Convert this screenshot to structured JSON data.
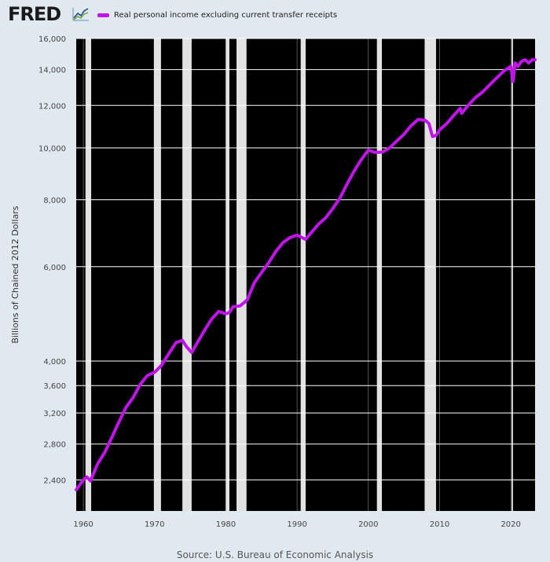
{
  "header": {
    "logo_text": "FRED",
    "logo_icon": "line-chart-icon"
  },
  "footer": {
    "source": "Source: U.S. Bureau of Economic Analysis"
  },
  "colors": {
    "background": "#e1e9f0",
    "plot_background": "#000000",
    "recession_band": "#e1e1e1",
    "series": "#c015e8",
    "grid": "#ffffff"
  },
  "chart_data": {
    "type": "line",
    "title": "",
    "xlabel": "",
    "ylabel": "Billions of Chained 2012 Dollars",
    "y_scale": "log",
    "ylim": [
      2100,
      16000
    ],
    "xlim": [
      1959.0,
      2023.4
    ],
    "grid": true,
    "legend_position": "top-left",
    "y_ticks": [
      2400,
      2800,
      3200,
      3600,
      4000,
      6000,
      8000,
      10000,
      12000,
      14000,
      16000
    ],
    "y_tick_labels": [
      "2,400",
      "2,800",
      "3,200",
      "3,600",
      "4,000",
      "6,000",
      "8,000",
      "10,000",
      "12,000",
      "14,000",
      "16,000"
    ],
    "x_ticks": [
      1960,
      1970,
      1980,
      1990,
      2000,
      2010,
      2020
    ],
    "x_tick_labels": [
      "1960",
      "1970",
      "1980",
      "1990",
      "2000",
      "2010",
      "2020"
    ],
    "recessions": [
      [
        1960.3,
        1961.1
      ],
      [
        1969.9,
        1970.9
      ],
      [
        1973.9,
        1975.2
      ],
      [
        1980.0,
        1980.5
      ],
      [
        1981.5,
        1982.9
      ],
      [
        1990.5,
        1991.2
      ],
      [
        2001.2,
        2001.9
      ],
      [
        2007.9,
        2009.5
      ],
      [
        2020.1,
        2020.3
      ]
    ],
    "series": [
      {
        "name": "Real personal income excluding current transfer receipts",
        "x": [
          1959.0,
          1959.5,
          1960.0,
          1960.5,
          1961.0,
          1961.5,
          1962.0,
          1963.0,
          1964.0,
          1965.0,
          1966.0,
          1967.0,
          1968.0,
          1969.0,
          1970.0,
          1971.0,
          1972.0,
          1973.0,
          1973.9,
          1974.5,
          1975.2,
          1976.0,
          1977.0,
          1978.0,
          1979.0,
          1980.0,
          1980.5,
          1981.0,
          1982.0,
          1983.0,
          1984.0,
          1985.0,
          1986.0,
          1987.0,
          1988.0,
          1989.0,
          1990.0,
          1990.5,
          1991.2,
          1992.0,
          1993.0,
          1994.0,
          1995.0,
          1996.0,
          1997.0,
          1998.0,
          1999.0,
          2000.0,
          2001.0,
          2002.0,
          2003.0,
          2004.0,
          2005.0,
          2006.0,
          2007.0,
          2008.0,
          2008.5,
          2009.0,
          2009.5,
          2010.0,
          2011.0,
          2012.0,
          2012.9,
          2013.1,
          2014.0,
          2015.0,
          2016.0,
          2017.0,
          2018.0,
          2019.0,
          2020.0,
          2020.3,
          2020.6,
          2021.0,
          2021.5,
          2022.0,
          2022.5,
          2023.0,
          2023.4
        ],
        "values": [
          2300,
          2350,
          2400,
          2430,
          2390,
          2480,
          2570,
          2700,
          2880,
          3080,
          3280,
          3420,
          3620,
          3760,
          3810,
          3930,
          4130,
          4330,
          4370,
          4250,
          4150,
          4330,
          4560,
          4790,
          4950,
          4900,
          4930,
          5050,
          5070,
          5200,
          5600,
          5850,
          6100,
          6400,
          6650,
          6800,
          6870,
          6820,
          6750,
          6950,
          7200,
          7400,
          7700,
          8050,
          8550,
          9050,
          9500,
          9900,
          9800,
          9820,
          10000,
          10300,
          10600,
          11000,
          11300,
          11250,
          11100,
          10500,
          10550,
          10800,
          11100,
          11500,
          11850,
          11600,
          12000,
          12400,
          12700,
          13100,
          13500,
          13900,
          14200,
          13300,
          14400,
          14200,
          14500,
          14600,
          14400,
          14600,
          14600
        ]
      }
    ]
  }
}
